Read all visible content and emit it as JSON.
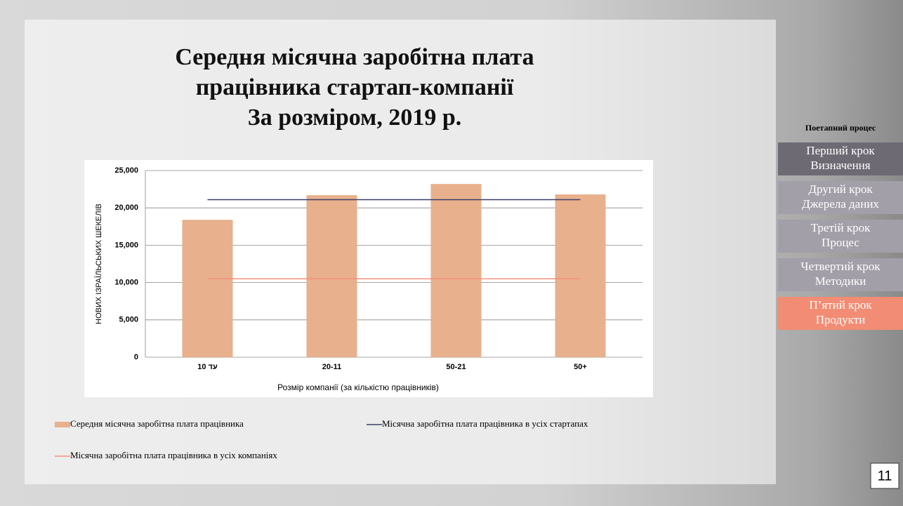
{
  "chart_data": {
    "type": "bar",
    "title": [
      "Середня місячна заробітна плата",
      "працівника стартап-компанії",
      "За розміром, 2019 р."
    ],
    "x_label": "Розмір компанії (за кількістю працівників)",
    "y_label": "НОВИХ ІЗРАЇЛЬСЬКИХ ШЕКЕЛІВ",
    "categories": [
      "10 עד",
      "20-11",
      "50-21",
      "50+"
    ],
    "series": [
      {
        "name": "Середня місячна заробітна плата працівника",
        "type": "bar",
        "color": "#e8b08c",
        "values": [
          18400,
          21700,
          23200,
          21800
        ]
      },
      {
        "name": "Місячна заробітна плата працівника в усіх стартапах",
        "type": "line",
        "color": "#3b3f6b",
        "values": [
          21100,
          21100,
          21100,
          21100
        ]
      },
      {
        "name": "Місячна заробітна плата працівника в усіх компаніях",
        "type": "line",
        "color": "#f4907e",
        "values": [
          10500,
          10500,
          10500,
          10500
        ]
      }
    ],
    "ylim": [
      0,
      25000
    ],
    "yticks": [
      0,
      {
        "value": 5000,
        "label": "5,000"
      },
      {
        "value": 10000,
        "label": "10,000"
      },
      {
        "value": 15000,
        "label": "15,000"
      },
      {
        "value": 20000,
        "label": "20,000"
      },
      {
        "value": 25000,
        "label": "25,000"
      }
    ],
    "grid": true
  },
  "sidebar": {
    "heading": "Поетапний процес",
    "steps": [
      [
        "Перший крок",
        "Визначення"
      ],
      [
        "Другий крок",
        "Джерела даних"
      ],
      [
        "Третій крок",
        "Процес"
      ],
      [
        "Четвертий крок",
        "Методики"
      ],
      [
        "П’ятий крок",
        "Продукти"
      ]
    ],
    "active_step": 4
  },
  "page_number": 11
}
